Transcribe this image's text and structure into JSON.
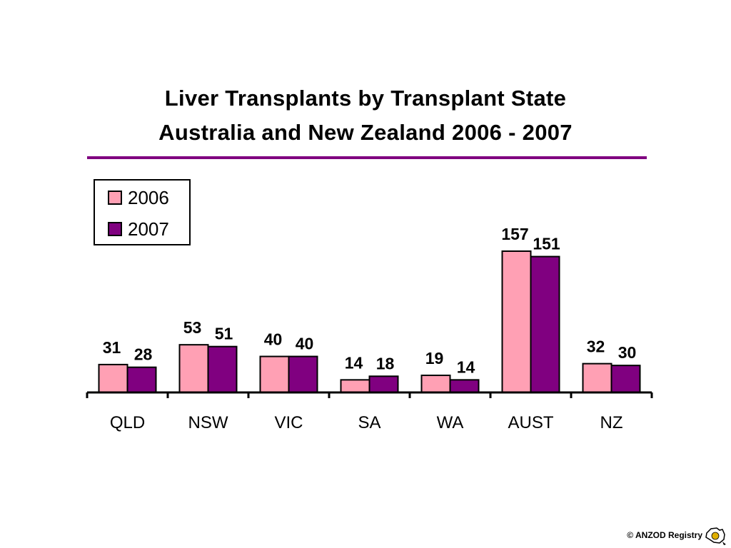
{
  "title": {
    "line1": "Liver Transplants by Transplant State",
    "line2": "Australia and New Zealand  2006 - 2007"
  },
  "footer": {
    "copyright": "© ANZOD Registry",
    "logo_text": "ANZOD"
  },
  "colors": {
    "series_2006": "#ffa0b4",
    "series_2007": "#800080",
    "rule": "#800080"
  },
  "chart_data": {
    "type": "bar",
    "title": "Liver Transplants by Transplant State Australia and New Zealand  2006 - 2007",
    "categories": [
      "QLD",
      "NSW",
      "VIC",
      "SA",
      "WA",
      "AUST",
      "NZ"
    ],
    "series": [
      {
        "name": "2006",
        "values": [
          31,
          53,
          40,
          14,
          19,
          157,
          32
        ]
      },
      {
        "name": "2007",
        "values": [
          28,
          51,
          40,
          18,
          14,
          151,
          30
        ]
      }
    ],
    "ylim": [
      0,
      157
    ],
    "grid": false,
    "legend_position": "top-left",
    "data_labels": true
  }
}
